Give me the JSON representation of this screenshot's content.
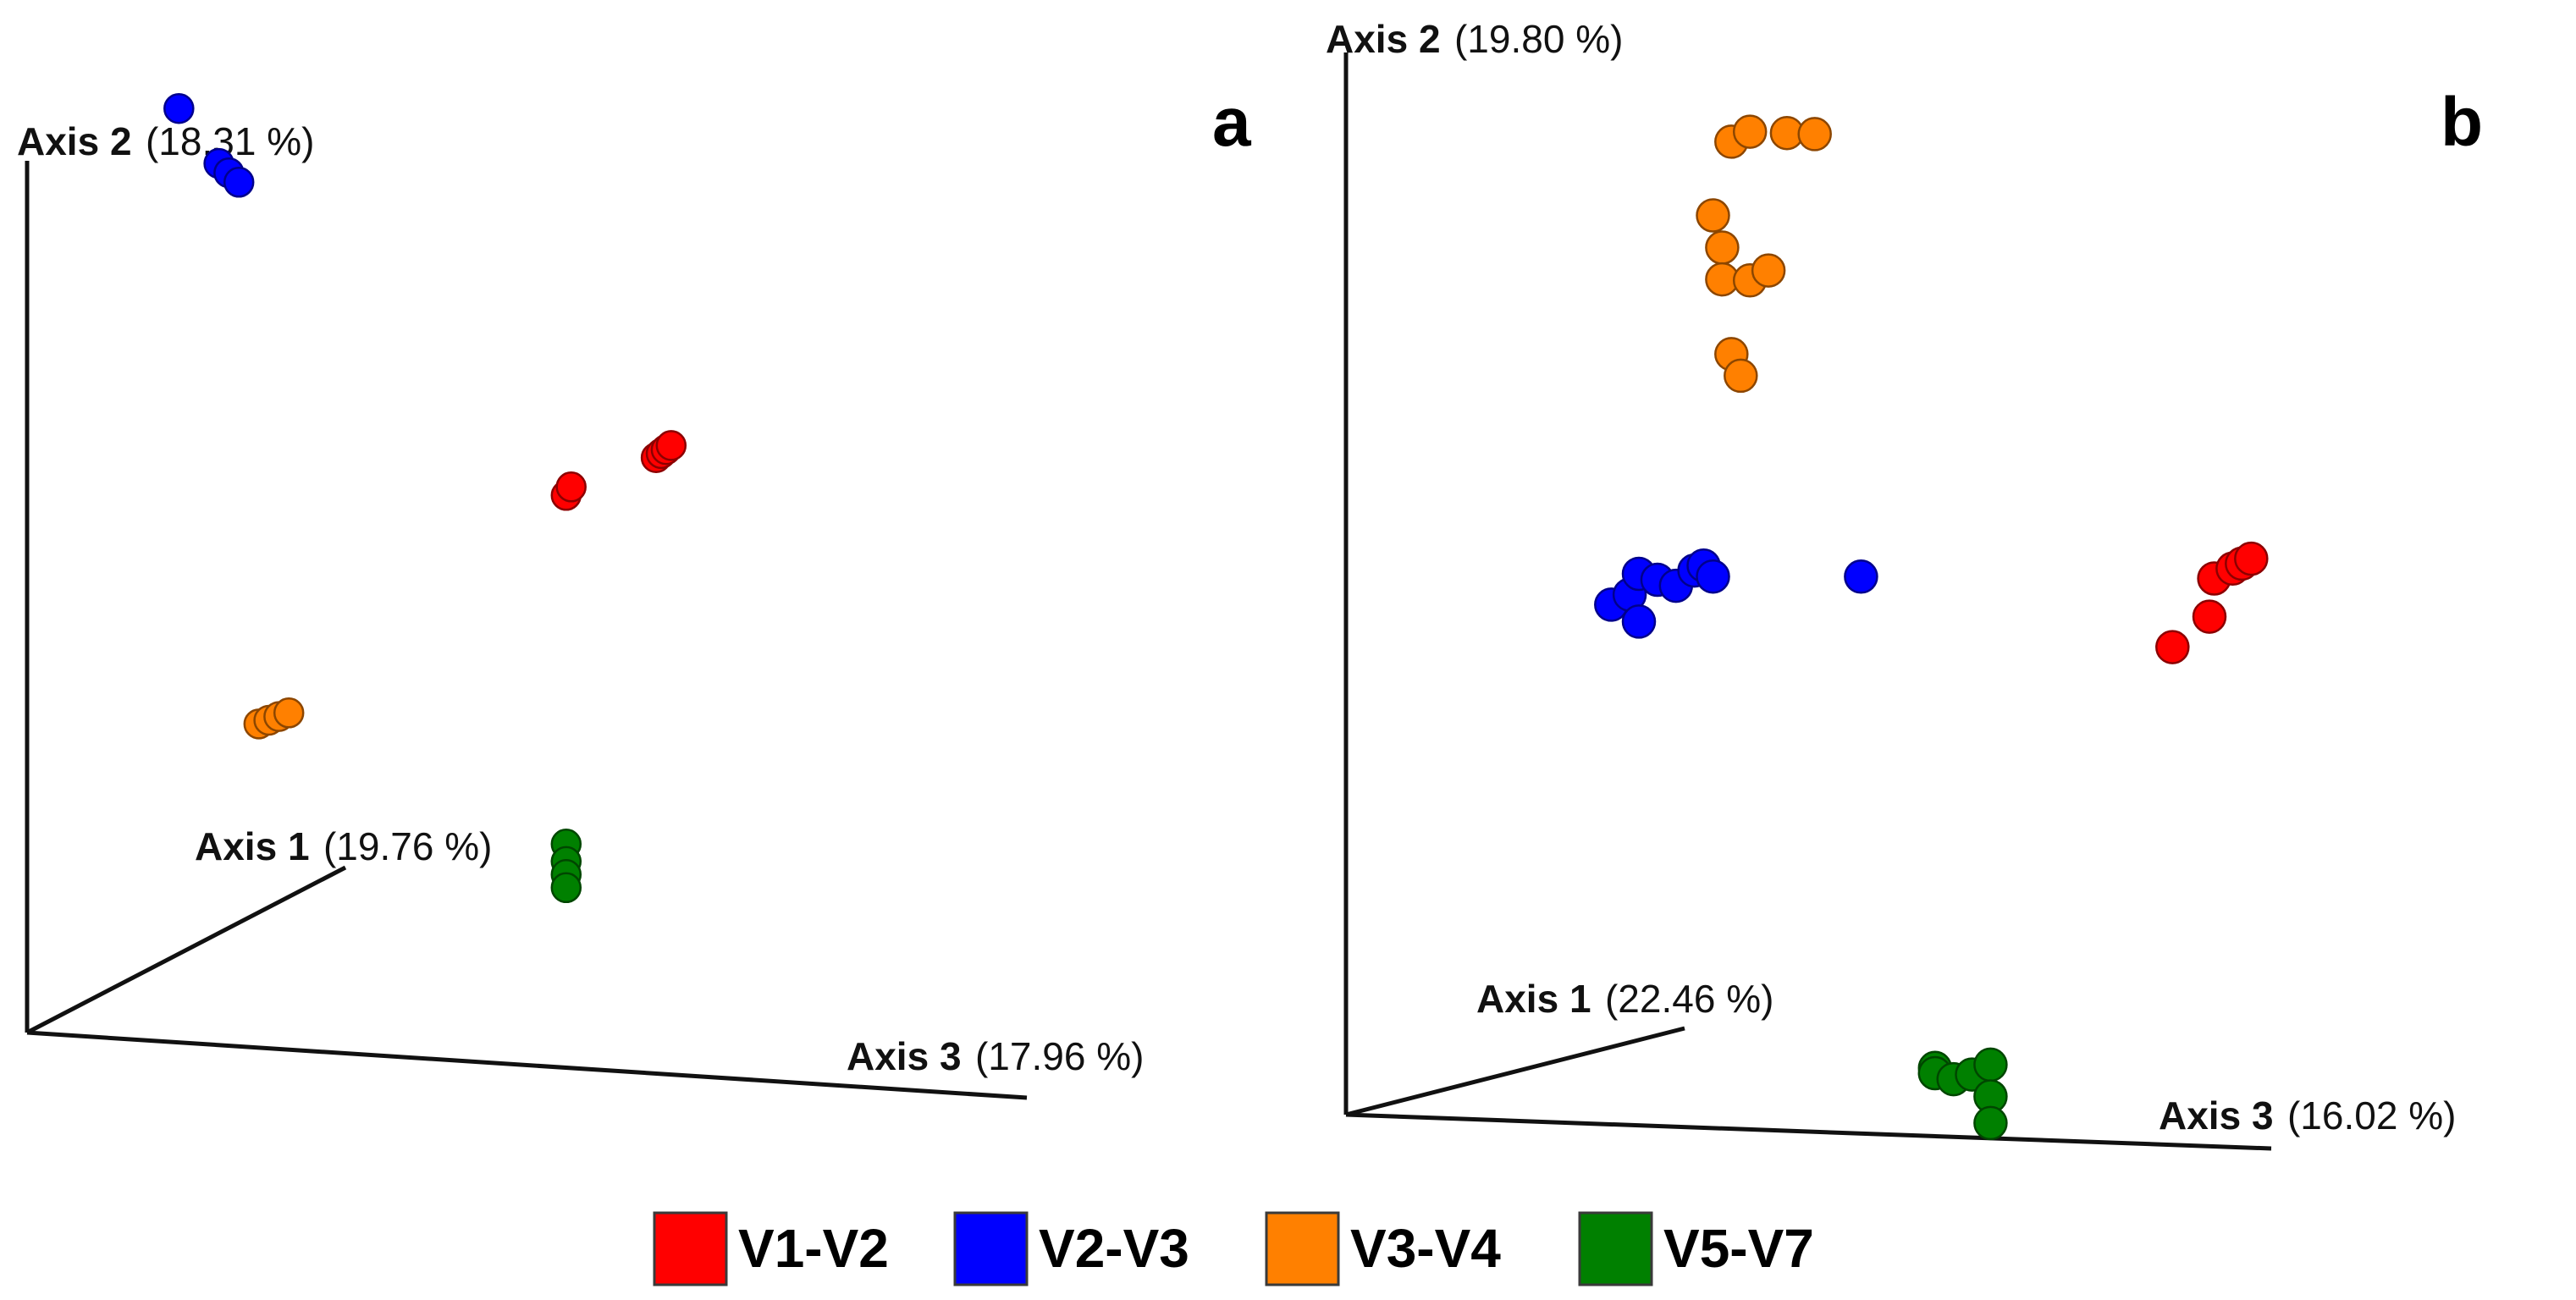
{
  "chart_data": [
    {
      "type": "scatter",
      "panel": "a",
      "axes": {
        "axis1": {
          "name": "Axis 1",
          "pct": "(19.76 %)"
        },
        "axis2": {
          "name": "Axis 2",
          "pct": "(18.31 %)"
        },
        "axis3": {
          "name": "Axis 3",
          "pct": "(17.96 %)"
        }
      },
      "series": [
        {
          "name": "V1-V2",
          "color": "#ff0000",
          "points": [
            [
              0.38,
              0.55,
              0.5
            ],
            [
              0.385,
              0.56,
              0.5
            ],
            [
              0.47,
              0.6,
              0.5
            ],
            [
              0.475,
              0.605,
              0.5
            ],
            [
              0.48,
              0.61,
              0.5
            ],
            [
              0.485,
              0.615,
              0.5
            ]
          ]
        },
        {
          "name": "V2-V3",
          "color": "#0000ff",
          "points": [
            [
              0.12,
              1.05,
              0.1
            ],
            [
              0.16,
              0.99,
              0.1
            ],
            [
              0.17,
              0.98,
              0.1
            ],
            [
              0.18,
              0.97,
              0.1
            ]
          ]
        },
        {
          "name": "V3-V4",
          "color": "#ff8000",
          "points": [
            [
              0.2,
              0.35,
              0.1
            ],
            [
              0.21,
              0.355,
              0.1
            ],
            [
              0.22,
              0.36,
              0.1
            ],
            [
              0.23,
              0.365,
              0.1
            ]
          ]
        },
        {
          "name": "V5-V7",
          "color": "#008000",
          "points": [
            [
              0.38,
              0.15,
              0.5
            ],
            [
              0.38,
              0.13,
              0.5
            ],
            [
              0.38,
              0.115,
              0.5
            ],
            [
              0.38,
              0.1,
              0.5
            ]
          ]
        }
      ]
    },
    {
      "type": "scatter",
      "panel": "b",
      "axes": {
        "axis1": {
          "name": "Axis 1",
          "pct": "(22.46 %)"
        },
        "axis2": {
          "name": "Axis 2",
          "pct": "(19.80 %)"
        },
        "axis3": {
          "name": "Axis 3",
          "pct": "(16.02 %)"
        }
      },
      "series": [
        {
          "name": "V1-V2",
          "color": "#ff0000",
          "points": [
            [
              0.82,
              0.45,
              0.2
            ],
            [
              0.86,
              0.48,
              0.2
            ],
            [
              0.92,
              0.53,
              0.05
            ],
            [
              0.94,
              0.54,
              0.05
            ],
            [
              0.95,
              0.545,
              0.05
            ],
            [
              0.96,
              0.55,
              0.05
            ]
          ]
        },
        {
          "name": "V2-V3",
          "color": "#0000ff",
          "points": [
            [
              0.25,
              0.48,
              0.1
            ],
            [
              0.27,
              0.49,
              0.1
            ],
            [
              0.28,
              0.51,
              0.1
            ],
            [
              0.3,
              0.505,
              0.1
            ],
            [
              0.28,
              0.465,
              0.1
            ],
            [
              0.32,
              0.5,
              0.1
            ],
            [
              0.34,
              0.515,
              0.1
            ],
            [
              0.35,
              0.52,
              0.1
            ],
            [
              0.36,
              0.51,
              0.1
            ],
            [
              0.52,
              0.515,
              0.1
            ]
          ]
        },
        {
          "name": "V3-V4",
          "color": "#ff8000",
          "points": [
            [
              0.36,
              0.85,
              0.1
            ],
            [
              0.37,
              0.82,
              0.1
            ],
            [
              0.37,
              0.79,
              0.1
            ],
            [
              0.4,
              0.79,
              0.1
            ],
            [
              0.42,
              0.8,
              0.1
            ],
            [
              0.38,
              0.72,
              0.1
            ],
            [
              0.39,
              0.7,
              0.1
            ],
            [
              0.38,
              0.92,
              0.1
            ],
            [
              0.4,
              0.93,
              0.1
            ],
            [
              0.44,
              0.93,
              0.1
            ],
            [
              0.47,
              0.93,
              0.1
            ]
          ]
        },
        {
          "name": "V5-V7",
          "color": "#008000",
          "points": [
            [
              0.6,
              0.055,
              0.1
            ],
            [
              0.6,
              0.05,
              0.1
            ],
            [
              0.62,
              0.045,
              0.1
            ],
            [
              0.64,
              0.05,
              0.1
            ],
            [
              0.66,
              0.06,
              0.1
            ],
            [
              0.66,
              0.03,
              0.1
            ],
            [
              0.66,
              0.005,
              0.1
            ]
          ]
        }
      ]
    }
  ],
  "legend": [
    {
      "label": "V1-V2",
      "color": "#ff0000"
    },
    {
      "label": "V2-V3",
      "color": "#0000ff"
    },
    {
      "label": "V3-V4",
      "color": "#ff8000"
    },
    {
      "label": "V5-V7",
      "color": "#008000"
    }
  ]
}
